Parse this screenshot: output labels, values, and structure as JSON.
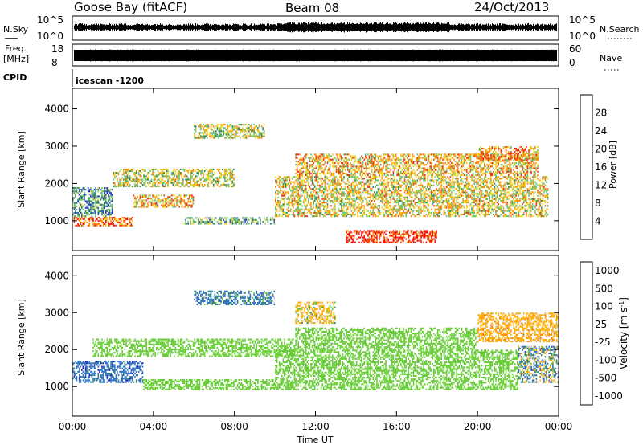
{
  "header": {
    "station": "Goose Bay (fitACF)",
    "beam": "Beam 08",
    "date": "24/Oct/2013"
  },
  "strips": {
    "nsky_label": "N.Sky",
    "nsky_ticks": [
      "10^5",
      "10^0"
    ],
    "nsearch_label": "N.Search",
    "nsearch_ticks": [
      "10^5",
      "10^0"
    ],
    "freq_label_1": "Freq.",
    "freq_label_2": "[MHz]",
    "freq_ticks": [
      "18",
      "8"
    ],
    "nave_label": "Nave",
    "nave_ticks": [
      "60",
      "0"
    ],
    "cpid_label": "CPID",
    "cpid_value": "icescan -1200",
    "trace_color": "#000000"
  },
  "chart_data": [
    {
      "type": "heatmap",
      "panel": "power",
      "ylabel": "Slant Range [km]",
      "y_ticks": [
        "1000",
        "2000",
        "3000",
        "4000"
      ],
      "yticks_values": [
        1000,
        2000,
        3000,
        4000
      ],
      "ylim": [
        200,
        4550
      ],
      "xlim": [
        0,
        24
      ],
      "colorbar_label": "Power [dB]",
      "colorbar_ticks": [
        "4",
        "8",
        "12",
        "16",
        "20",
        "24",
        "28"
      ],
      "colorbar_tick_values": [
        4,
        8,
        12,
        16,
        20,
        24,
        28
      ],
      "colorbar_range": [
        0,
        32
      ],
      "colorbar_colors": [
        "#1010e6",
        "#2f4fa6",
        "#2e8b57",
        "#6cc16a",
        "#f0d020",
        "#ff8c00",
        "#e63a1a",
        "#ff0000"
      ],
      "echo_regions": [
        {
          "t0": 0.0,
          "t1": 2.0,
          "r0": 1100,
          "r1": 1900,
          "v": 10
        },
        {
          "t0": 0.0,
          "t1": 3.0,
          "r0": 850,
          "r1": 1100,
          "v": 24
        },
        {
          "t0": 2.0,
          "t1": 8.0,
          "r0": 1900,
          "r1": 2400,
          "v": 16
        },
        {
          "t0": 3.0,
          "t1": 6.0,
          "r0": 1350,
          "r1": 1700,
          "v": 20
        },
        {
          "t0": 5.5,
          "t1": 10.0,
          "r0": 900,
          "r1": 1100,
          "v": 12
        },
        {
          "t0": 6.0,
          "t1": 9.5,
          "r0": 3200,
          "r1": 3600,
          "v": 16
        },
        {
          "t0": 10.0,
          "t1": 23.5,
          "r0": 1100,
          "r1": 2200,
          "v": 18
        },
        {
          "t0": 11.0,
          "t1": 23.0,
          "r0": 2200,
          "r1": 2800,
          "v": 20
        },
        {
          "t0": 13.5,
          "t1": 18.0,
          "r0": 400,
          "r1": 750,
          "v": 28
        },
        {
          "t0": 20.0,
          "t1": 23.0,
          "r0": 2600,
          "r1": 3000,
          "v": 22
        }
      ]
    },
    {
      "type": "heatmap",
      "panel": "velocity",
      "ylabel": "Slant Range [km]",
      "y_ticks": [
        "1000",
        "2000",
        "3000",
        "4000"
      ],
      "yticks_values": [
        1000,
        2000,
        3000,
        4000
      ],
      "ylim": [
        200,
        4550
      ],
      "xlim": [
        0,
        24
      ],
      "xlabel": "Time UT",
      "x_ticks": [
        "00:00",
        "04:00",
        "08:00",
        "12:00",
        "16:00",
        "20:00",
        "00:00"
      ],
      "xticks_values": [
        0,
        4,
        8,
        12,
        16,
        20,
        24
      ],
      "colorbar_label": "Velocity [m s^-1]",
      "colorbar_ticks": [
        "1000",
        "500",
        "100",
        "25",
        "-25",
        "-100",
        "-500",
        "-1000"
      ],
      "colorbar_colors": [
        "#1414c8",
        "#2b6fbf",
        "#2e8b57",
        "#66cc33",
        "#c8c8c8",
        "#ffaa00",
        "#ff7700",
        "#e62020"
      ],
      "echo_regions": [
        {
          "t0": 0.0,
          "t1": 3.5,
          "r0": 1100,
          "r1": 1700,
          "v": 300
        },
        {
          "t0": 1.0,
          "t1": 11.0,
          "r0": 1800,
          "r1": 2300,
          "v": 0
        },
        {
          "t0": 3.5,
          "t1": 10.0,
          "r0": 900,
          "r1": 1200,
          "v": 0
        },
        {
          "t0": 6.0,
          "t1": 10.0,
          "r0": 3200,
          "r1": 3600,
          "v": 200
        },
        {
          "t0": 10.0,
          "t1": 22.0,
          "r0": 900,
          "r1": 2000,
          "v": 0
        },
        {
          "t0": 11.0,
          "t1": 20.0,
          "r0": 2000,
          "r1": 2600,
          "v": 0
        },
        {
          "t0": 11.0,
          "t1": 13.0,
          "r0": 2700,
          "r1": 3300,
          "v": -200
        },
        {
          "t0": 20.0,
          "t1": 24.0,
          "r0": 2200,
          "r1": 3000,
          "v": -300
        },
        {
          "t0": 22.0,
          "t1": 24.0,
          "r0": 1100,
          "r1": 2100,
          "v": 50
        }
      ]
    }
  ]
}
